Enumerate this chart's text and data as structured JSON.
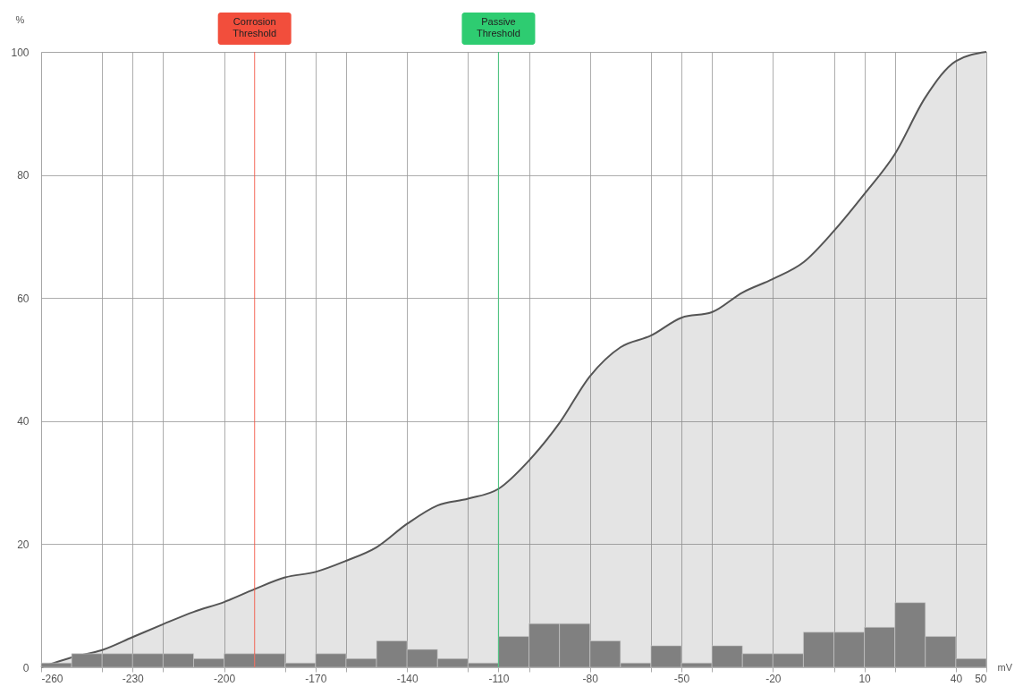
{
  "chart_data": {
    "type": "histogram",
    "xlabel": "mV",
    "ylabel": "%",
    "xlim": [
      -260,
      50
    ],
    "xticks": [
      -260,
      {
        "value": -240,
        "label": null
      },
      -230,
      {
        "value": -220,
        "label": null
      },
      -200,
      {
        "value": -180,
        "label": null
      },
      -170,
      {
        "value": -160,
        "label": null
      },
      -140,
      {
        "value": -120,
        "label": null
      },
      -110,
      {
        "value": -100,
        "label": null
      },
      -80,
      {
        "value": -60,
        "label": null
      },
      -50,
      {
        "value": -40,
        "label": null
      },
      -20,
      {
        "value": 0,
        "label": null
      },
      10,
      {
        "value": 20,
        "label": null
      },
      40,
      50
    ],
    "ylim": [
      0,
      100
    ],
    "yticks": [
      0,
      20,
      40,
      60,
      80,
      100
    ],
    "grid": true,
    "series": [
      {
        "type": "area",
        "color": "#555555",
        "x": [
          -260,
          -250,
          -240,
          -230,
          -220,
          -210,
          -200,
          -190,
          -180,
          -170,
          -160,
          -150,
          -140,
          -130,
          -120,
          -110,
          -100,
          -90,
          -80,
          -70,
          -60,
          -50,
          -40,
          -30,
          -20,
          -10,
          0,
          10,
          20,
          30,
          40,
          50
        ],
        "values": [
          0,
          1.6,
          2.8,
          4.9,
          7.0,
          9.0,
          10.6,
          12.7,
          14.6,
          15.5,
          17.3,
          19.5,
          23.3,
          26.3,
          27.4,
          29.0,
          33.6,
          39.7,
          47.3,
          52.0,
          53.9,
          56.8,
          57.7,
          60.9,
          63.1,
          65.8,
          70.9,
          76.9,
          83.4,
          92.6,
          98.5,
          100
        ]
      },
      {
        "color": "#808080",
        "bins": [
          -260,
          -250,
          -240,
          -230,
          -220,
          -210,
          -200,
          -190,
          -180,
          -170,
          -160,
          -150,
          -140,
          -130,
          -120,
          -110,
          -100,
          -90,
          -80,
          -70,
          -60,
          -50,
          -40,
          -30,
          -20,
          -10,
          0,
          10,
          20,
          30,
          40,
          50
        ],
        "values": [
          0.7,
          2.2,
          2.2,
          2.2,
          2.2,
          1.4,
          2.2,
          2.2,
          0.7,
          2.2,
          1.4,
          4.3,
          2.9,
          1.4,
          0.7,
          5.0,
          7.1,
          7.1,
          4.3,
          0.7,
          3.5,
          0.7,
          3.5,
          2.2,
          2.2,
          5.7,
          5.7,
          6.5,
          10.5,
          5.0,
          1.4
        ]
      }
    ],
    "ref_lines": [
      {
        "axis": "x",
        "value": -190,
        "label": "Corrosion Threshold",
        "color": "#f24e3c"
      },
      {
        "axis": "x",
        "value": -110,
        "label": "Passive Threshold",
        "color": "#2ecc71"
      }
    ]
  }
}
